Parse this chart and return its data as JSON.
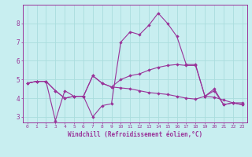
{
  "xlabel": "Windchill (Refroidissement éolien,°C)",
  "ylabel": "",
  "background_color": "#c8eef0",
  "line_color": "#993399",
  "xlim": [
    -0.5,
    23.5
  ],
  "ylim": [
    2.7,
    9.0
  ],
  "yticks": [
    3,
    4,
    5,
    6,
    7,
    8
  ],
  "xticks": [
    0,
    1,
    2,
    3,
    4,
    5,
    6,
    7,
    8,
    9,
    10,
    11,
    12,
    13,
    14,
    15,
    16,
    17,
    18,
    19,
    20,
    21,
    22,
    23
  ],
  "line1_y": [
    4.8,
    4.9,
    4.9,
    4.4,
    4.0,
    4.1,
    4.1,
    5.2,
    4.8,
    4.6,
    4.55,
    4.5,
    4.4,
    4.3,
    4.25,
    4.2,
    4.1,
    4.0,
    3.95,
    4.1,
    4.05,
    3.9,
    3.75,
    3.75
  ],
  "line2_y": [
    4.8,
    4.9,
    4.9,
    2.8,
    4.4,
    4.1,
    4.1,
    3.0,
    3.6,
    3.7,
    7.0,
    7.55,
    7.4,
    7.9,
    8.55,
    8.0,
    7.3,
    5.8,
    5.8,
    4.1,
    4.5,
    3.65,
    3.75,
    3.65
  ],
  "line3_y": [
    4.8,
    4.9,
    4.9,
    4.4,
    4.0,
    4.1,
    4.1,
    5.2,
    4.8,
    4.6,
    5.0,
    5.2,
    5.3,
    5.5,
    5.65,
    5.75,
    5.8,
    5.75,
    5.75,
    4.1,
    4.4,
    3.65,
    3.75,
    3.65
  ],
  "grid_color": "#aadddd",
  "marker": "D",
  "markersize": 2.2,
  "linewidth": 0.8
}
